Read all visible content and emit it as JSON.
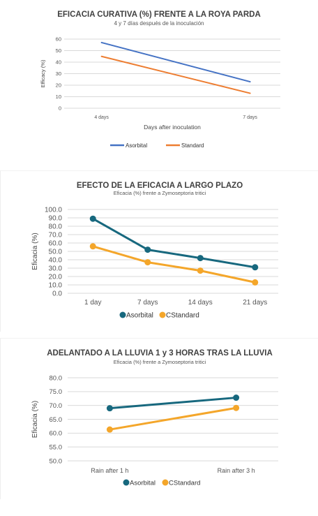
{
  "chart_data": [
    {
      "type": "line",
      "title": "EFICACIA CURATIVA (%) FRENTE A LA ROYA PARDA",
      "subtitle": "4 y 7 días después de la inoculación",
      "xlabel": "Days after inoculation",
      "ylabel": "Efficacy (%)",
      "categories": [
        "4 days",
        "7 days"
      ],
      "yticks": [
        "0",
        "10",
        "20",
        "30",
        "40",
        "50",
        "60"
      ],
      "ylim": [
        0,
        60
      ],
      "grid": true,
      "legend_position": "bottom",
      "series": [
        {
          "name": "Asorbital",
          "values": [
            57,
            23
          ],
          "color": "#4472c4"
        },
        {
          "name": "Standard",
          "values": [
            45,
            13
          ],
          "color": "#ed7d31"
        }
      ]
    },
    {
      "type": "line",
      "title": "EFECTO DE LA EFICACIA A LARGO PLAZO",
      "subtitle": "Eficacia (%) frente a Zymoseptoria tritici",
      "xlabel": "",
      "ylabel": "Eficacia (%)",
      "categories": [
        "1 day",
        "7 days",
        "14 days",
        "21 days"
      ],
      "yticks": [
        "0.0",
        "10.0",
        "20.0",
        "30.0",
        "40.0",
        "50.0",
        "60.0",
        "70.0",
        "80.0",
        "90.0",
        "100.0"
      ],
      "ylim": [
        0,
        100
      ],
      "grid": true,
      "legend_position": "bottom",
      "series": [
        {
          "name": "Asorbital",
          "values": [
            89,
            52,
            42,
            31
          ],
          "color": "#17687e"
        },
        {
          "name": "CStandard",
          "values": [
            56,
            37,
            27,
            13
          ],
          "color": "#f4a62a"
        }
      ]
    },
    {
      "type": "line",
      "title": "ADELANTADO A LA LLUVIA 1 y 3 HORAS TRAS LA LLUVIA",
      "subtitle": "Eficacia (%) frente a Zymoseptoria tritici",
      "xlabel": "",
      "ylabel": "Eficacia (%)",
      "categories": [
        "Rain after 1 h",
        "Rain after 3 h"
      ],
      "yticks": [
        "50.0",
        "55.0",
        "60.0",
        "65.0",
        "70.0",
        "75.0",
        "80.0"
      ],
      "ylim": [
        50,
        80
      ],
      "grid": true,
      "legend_position": "bottom",
      "series": [
        {
          "name": "Asorbital",
          "values": [
            69,
            72.8
          ],
          "color": "#17687e"
        },
        {
          "name": "CStandard",
          "values": [
            61.3,
            69.1
          ],
          "color": "#f4a62a"
        }
      ]
    }
  ]
}
